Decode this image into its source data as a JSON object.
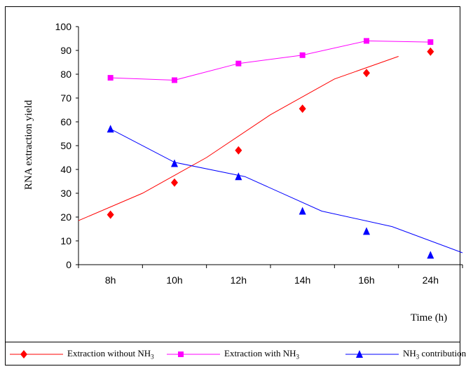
{
  "chart_data": {
    "type": "line",
    "xlabel": "Time (h)",
    "ylabel": "RNA extraction yield",
    "categories": [
      "8h",
      "10h",
      "12h",
      "14h",
      "16h",
      "24h"
    ],
    "ylim": [
      0,
      100
    ],
    "yticks": [
      0,
      10,
      20,
      30,
      40,
      50,
      60,
      70,
      80,
      90,
      100
    ],
    "grid": false,
    "legend_position": "bottom",
    "series": [
      {
        "name": "Extraction without NH3",
        "name_base": "Extraction without NH",
        "name_sub": "3",
        "name_suffix": "",
        "color": "#ff0000",
        "marker": "diamond",
        "points": [
          21,
          34.5,
          48,
          65.5,
          80.5,
          89.5
        ],
        "trend": [
          [
            0.5,
            18.5
          ],
          [
            1.5,
            30
          ],
          [
            2.5,
            45
          ],
          [
            3.5,
            63
          ],
          [
            4.5,
            78
          ],
          [
            5.5,
            87.5
          ]
        ]
      },
      {
        "name": "Extraction with NH3",
        "name_base": "Extraction with NH",
        "name_sub": "3",
        "name_suffix": "",
        "color": "#ff00ff",
        "marker": "square",
        "points": [
          78.5,
          77.5,
          84.5,
          88,
          94,
          93.5
        ],
        "trend": [
          [
            1,
            78.5
          ],
          [
            2,
            77.5
          ],
          [
            3,
            84.5
          ],
          [
            4,
            88
          ],
          [
            5,
            94
          ],
          [
            6,
            93.5
          ]
        ]
      },
      {
        "name": "NH3 contribution",
        "name_base": "NH",
        "name_sub": "3",
        "name_suffix": " contribution",
        "color": "#0000ff",
        "marker": "triangle",
        "points": [
          57,
          42.5,
          37,
          22.5,
          14,
          4
        ],
        "trend": [
          [
            1,
            57
          ],
          [
            2,
            43
          ],
          [
            3.1,
            37
          ],
          [
            4.3,
            22.5
          ],
          [
            5.4,
            16
          ],
          [
            6.5,
            5
          ]
        ]
      }
    ]
  }
}
